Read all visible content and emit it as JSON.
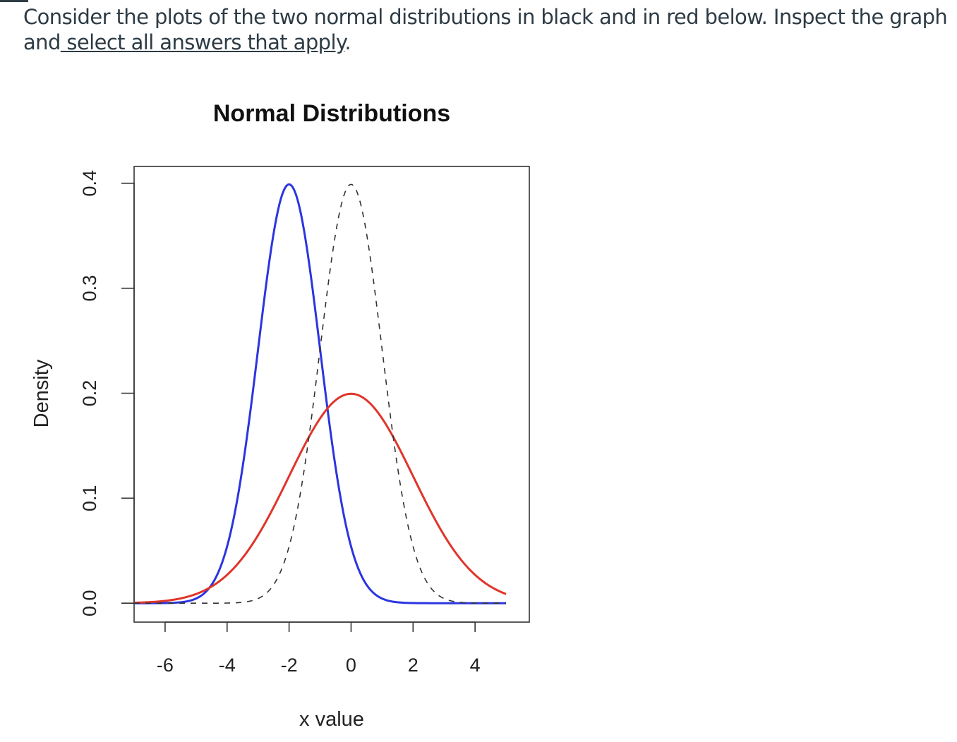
{
  "question": {
    "line1": "Consider the plots of the two normal distributions in black and in red below. Inspect the graph",
    "line2_prefix": "and",
    "line2_emphasis": " select all answers that apply",
    "line2_suffix": "."
  },
  "chart_data": {
    "type": "line",
    "title": "Normal Distributions",
    "xlabel": "x value",
    "ylabel": "Density",
    "xlim": [
      -7.0,
      5.75
    ],
    "ylim": [
      -0.018,
      0.416
    ],
    "x_ticks": [
      "-6",
      "-4",
      "-2",
      "0",
      "2",
      "4"
    ],
    "y_ticks": [
      "0.0",
      "0.1",
      "0.2",
      "0.3",
      "0.4"
    ],
    "grid": false,
    "legend": "none",
    "series": [
      {
        "color": "#2b35e0",
        "style": "solid",
        "mean": -2,
        "sd": 1,
        "x_range": [
          -7,
          5
        ]
      },
      {
        "color": "#e0352b",
        "style": "solid",
        "mean": 0,
        "sd": 2,
        "x_range": [
          -7,
          5
        ]
      },
      {
        "color": "#333333",
        "style": "dashed",
        "mean": 0,
        "sd": 1,
        "x_range": [
          -7,
          5
        ]
      }
    ]
  }
}
